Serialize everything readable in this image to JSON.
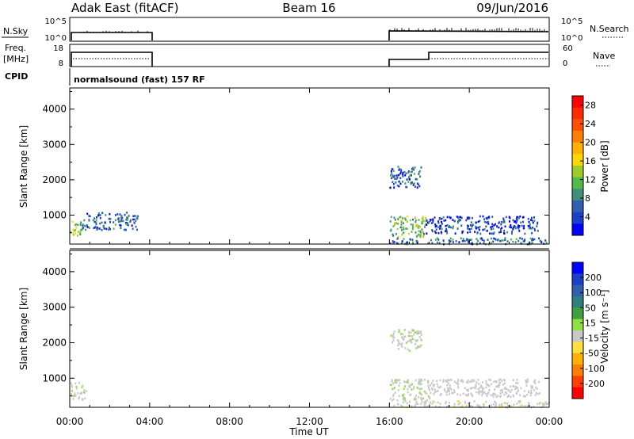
{
  "header": {
    "station": "Adak East (fitACF)",
    "beam": "Beam 16",
    "date": "09/Jun/2016"
  },
  "status_panels": {
    "nsky_label": "N.Sky",
    "nsky_ticks": [
      "10^5",
      "10^0"
    ],
    "nsearch_label": "N.Search",
    "nsearch_ticks": [
      "10^5",
      "10^0"
    ],
    "freq_label_1": "Freq.",
    "freq_label_2": "[MHz]",
    "freq_ticks": [
      "18",
      "8"
    ],
    "nave_label": "Nave",
    "nave_ticks": [
      "60",
      "0"
    ],
    "cpid_label": "CPID",
    "cpid_text": "normalsound (fast) 157 RF"
  },
  "colors": {
    "power_scale": [
      "#0000ff",
      "#1a40c8",
      "#2f5fae",
      "#3f8f7a",
      "#55b84a",
      "#9ccc2a",
      "#ffd700",
      "#ffb000",
      "#ff7f00",
      "#ff5000",
      "#ff2a00",
      "#ff0000"
    ],
    "velocity_scale": [
      "#ff0000",
      "#ff4000",
      "#ff8000",
      "#ffb000",
      "#ffe040",
      "#c8c8c8",
      "#90e040",
      "#3fa040",
      "#2f7f7f",
      "#2f5fae",
      "#1a40c8",
      "#0000ff"
    ],
    "ground_scatter": "#c8c8c8"
  },
  "chart_data": [
    {
      "type": "heatmap",
      "panel": "power",
      "xlabel": "Time UT",
      "ylabel": "Slant Range [km]",
      "x_ticks": [
        "00:00",
        "04:00",
        "08:00",
        "12:00",
        "16:00",
        "20:00",
        "00:00"
      ],
      "xlim_hours": [
        0,
        24
      ],
      "y_ticks": [
        1000,
        2000,
        3000,
        4000
      ],
      "ylim_km": [
        180,
        4600
      ],
      "colorbar": {
        "label": "Power [dB]",
        "ticks": [
          4,
          8,
          12,
          16,
          20,
          24,
          28
        ],
        "range": [
          0,
          30
        ]
      },
      "echo_regions": [
        {
          "t0": 0.0,
          "t1": 0.6,
          "r0": 400,
          "r1": 900,
          "level": 12
        },
        {
          "t0": 0.6,
          "t1": 3.4,
          "r0": 600,
          "r1": 1100,
          "level": 5
        },
        {
          "t0": 16.0,
          "t1": 17.8,
          "r0": 400,
          "r1": 1000,
          "level": 10
        },
        {
          "t0": 16.0,
          "t1": 17.6,
          "r0": 1800,
          "r1": 2400,
          "level": 5
        },
        {
          "t0": 17.8,
          "t1": 23.4,
          "r0": 500,
          "r1": 1000,
          "level": 3
        },
        {
          "t0": 16.0,
          "t1": 24.0,
          "r0": 200,
          "r1": 380,
          "level": 6
        }
      ]
    },
    {
      "type": "heatmap",
      "panel": "velocity",
      "xlabel": "Time UT",
      "ylabel": "Slant Range [km]",
      "x_ticks": [
        "00:00",
        "04:00",
        "08:00",
        "12:00",
        "16:00",
        "20:00",
        "00:00"
      ],
      "xlim_hours": [
        0,
        24
      ],
      "y_ticks": [
        1000,
        2000,
        3000,
        4000
      ],
      "ylim_km": [
        180,
        4600
      ],
      "colorbar": {
        "label": "Velocity [m s⁻¹]",
        "ticks": [
          200,
          100,
          50,
          15,
          -15,
          -50,
          -100,
          -200
        ],
        "range": [
          -300,
          300
        ]
      },
      "echo_regions": [
        {
          "t0": 0.0,
          "t1": 0.8,
          "r0": 400,
          "r1": 900,
          "velocity": 0
        },
        {
          "t0": 16.0,
          "t1": 18.0,
          "r0": 400,
          "r1": 1000,
          "velocity": 0
        },
        {
          "t0": 16.0,
          "t1": 17.6,
          "r0": 1800,
          "r1": 2400,
          "velocity": 0
        },
        {
          "t0": 18.0,
          "t1": 23.5,
          "r0": 500,
          "r1": 1000,
          "velocity": -20
        },
        {
          "t0": 16.0,
          "t1": 24.0,
          "r0": 200,
          "r1": 380,
          "velocity": -30
        }
      ]
    }
  ]
}
